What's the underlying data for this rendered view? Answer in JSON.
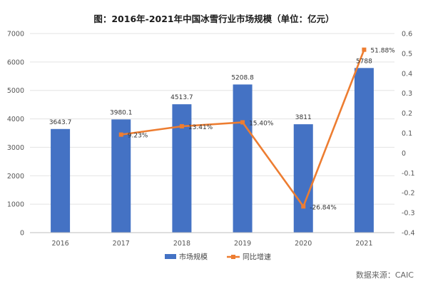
{
  "chart_data": {
    "type": "bar",
    "title": "图：2016年-2021年中国冰雪行业市场规模（单位：亿元）",
    "categories": [
      "2016",
      "2017",
      "2018",
      "2019",
      "2020",
      "2021"
    ],
    "series": [
      {
        "name": "市场规模",
        "type": "bar",
        "axis": "left",
        "values": [
          3643.7,
          3980.1,
          4513.7,
          5208.8,
          3811,
          5788
        ],
        "labels": [
          "3643.7",
          "3980.1",
          "4513.7",
          "5208.8",
          "3811",
          "5788"
        ],
        "color": "#4472C4"
      },
      {
        "name": "同比增速",
        "type": "line",
        "axis": "right",
        "values": [
          null,
          0.0923,
          0.1341,
          0.154,
          -0.2684,
          0.5188
        ],
        "labels": [
          null,
          "9.23%",
          "13.41%",
          "15.40%",
          "-26.84%",
          "51.88%"
        ],
        "color": "#ED7D31"
      }
    ],
    "y_left": {
      "min": 0,
      "max": 7000,
      "ticks": [
        0,
        1000,
        2000,
        3000,
        4000,
        5000,
        6000,
        7000
      ],
      "tick_labels": [
        "0",
        "1000",
        "2000",
        "3000",
        "4000",
        "5000",
        "6000",
        "7000"
      ]
    },
    "y_right": {
      "min": -0.4,
      "max": 0.6,
      "ticks": [
        -0.4,
        -0.3,
        -0.2,
        -0.1,
        0,
        0.1,
        0.2,
        0.3,
        0.4,
        0.5,
        0.6
      ],
      "tick_labels": [
        "-0.4",
        "-0.3",
        "-0.2",
        "-0.1",
        "0",
        "0.1",
        "0.2",
        "0.3",
        "0.4",
        "0.5",
        "0.6"
      ]
    },
    "grid": true,
    "legend_position": "bottom",
    "source": "数据来源：CAIC"
  }
}
